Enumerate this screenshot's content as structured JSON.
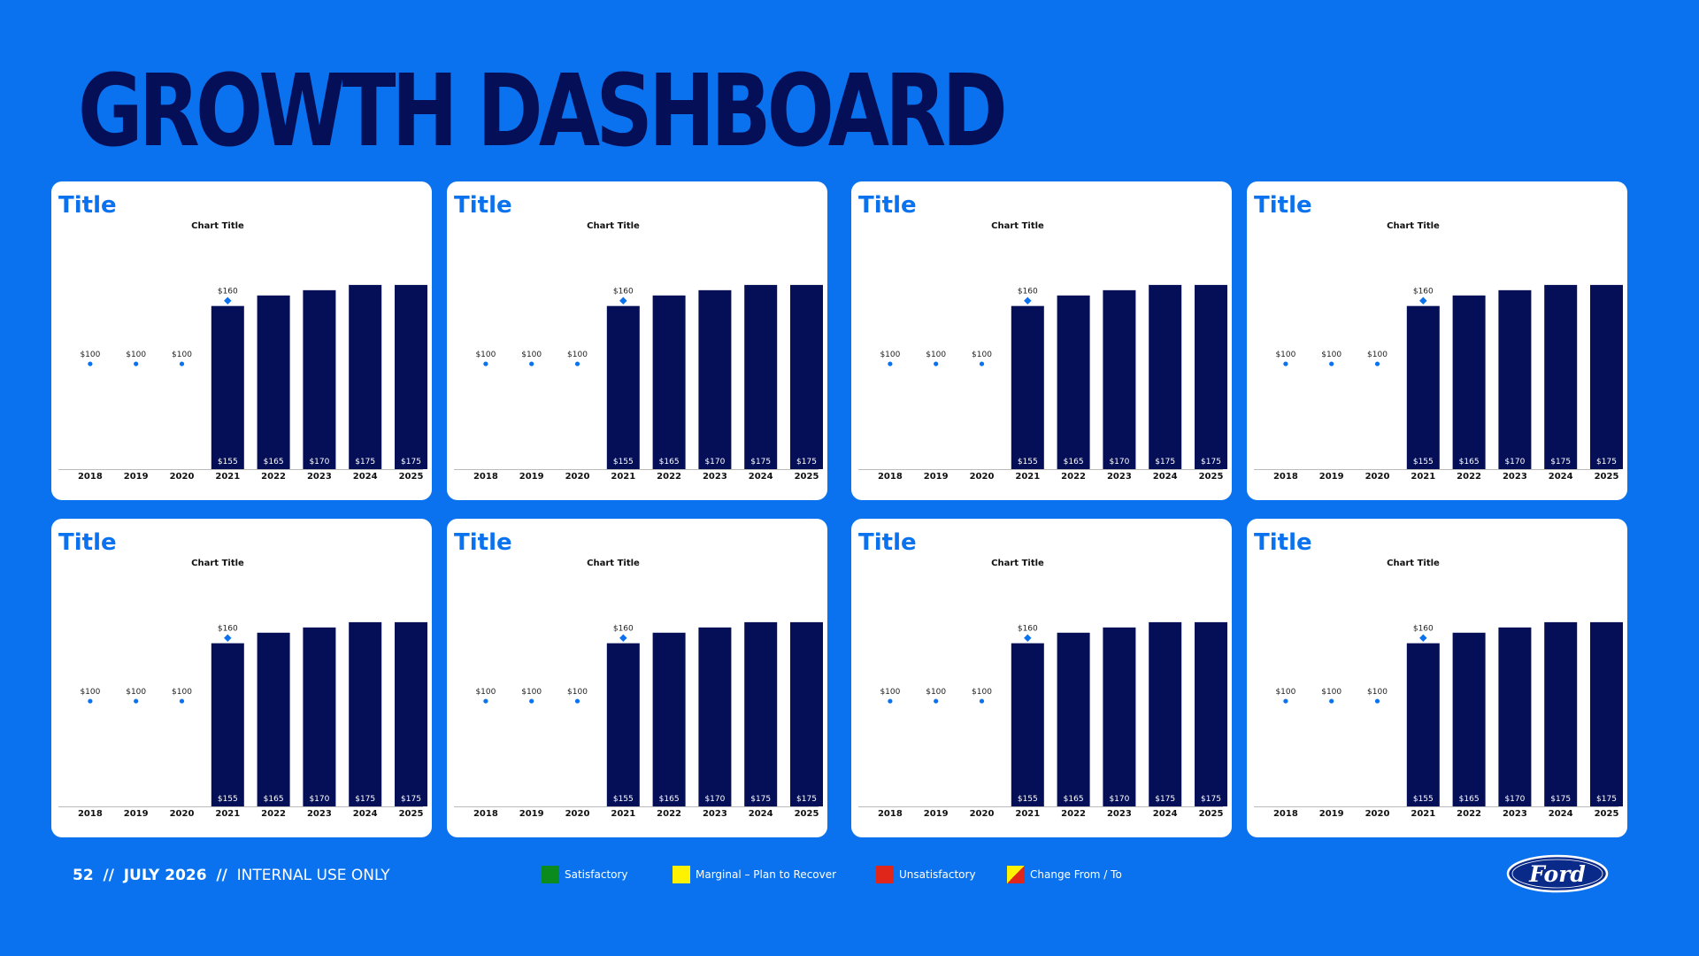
{
  "header": {
    "title": "GROWTH DASHBOARD"
  },
  "colors": {
    "bar": "#050F57",
    "marker": "#0A72EE",
    "background": "#0A72EE",
    "title": "#0A72EE"
  },
  "cards": [
    {
      "title": "Title"
    },
    {
      "title": "Title"
    },
    {
      "title": "Title"
    },
    {
      "title": "Title"
    },
    {
      "title": "Title"
    },
    {
      "title": "Title"
    },
    {
      "title": "Title"
    },
    {
      "title": "Title"
    }
  ],
  "chart_data": [
    {
      "type": "bar",
      "title": "Chart Title",
      "categories": [
        "2018",
        "2019",
        "2020",
        "2021",
        "2022",
        "2023",
        "2024",
        "2025"
      ],
      "series": [
        {
          "values": [
            null,
            null,
            null,
            155,
            165,
            170,
            175,
            175
          ],
          "labels": [
            "",
            "",
            "",
            "$155",
            "$165",
            "$170",
            "$175",
            "$175"
          ]
        }
      ],
      "markers": [
        {
          "values": [
            100,
            100,
            100,
            160,
            null,
            null,
            null,
            null
          ],
          "labels": [
            "$100",
            "$100",
            "$100",
            "$160",
            "",
            "",
            "",
            ""
          ]
        }
      ],
      "ylim": [
        0,
        185
      ]
    },
    {
      "type": "bar",
      "title": "Chart Title",
      "categories": [
        "2018",
        "2019",
        "2020",
        "2021",
        "2022",
        "2023",
        "2024",
        "2025"
      ],
      "series": [
        {
          "values": [
            null,
            null,
            null,
            155,
            165,
            170,
            175,
            175
          ],
          "labels": [
            "",
            "",
            "",
            "$155",
            "$165",
            "$170",
            "$175",
            "$175"
          ]
        }
      ],
      "markers": [
        {
          "values": [
            100,
            100,
            100,
            160,
            null,
            null,
            null,
            null
          ],
          "labels": [
            "$100",
            "$100",
            "$100",
            "$160",
            "",
            "",
            "",
            ""
          ]
        }
      ],
      "ylim": [
        0,
        185
      ]
    },
    {
      "type": "bar",
      "title": "Chart Title",
      "categories": [
        "2018",
        "2019",
        "2020",
        "2021",
        "2022",
        "2023",
        "2024",
        "2025"
      ],
      "series": [
        {
          "values": [
            null,
            null,
            null,
            155,
            165,
            170,
            175,
            175
          ],
          "labels": [
            "",
            "",
            "",
            "$155",
            "$165",
            "$170",
            "$175",
            "$175"
          ]
        }
      ],
      "markers": [
        {
          "values": [
            100,
            100,
            100,
            160,
            null,
            null,
            null,
            null
          ],
          "labels": [
            "$100",
            "$100",
            "$100",
            "$160",
            "",
            "",
            "",
            ""
          ]
        }
      ],
      "ylim": [
        0,
        185
      ]
    },
    {
      "type": "bar",
      "title": "Chart Title",
      "categories": [
        "2018",
        "2019",
        "2020",
        "2021",
        "2022",
        "2023",
        "2024",
        "2025"
      ],
      "series": [
        {
          "values": [
            null,
            null,
            null,
            155,
            165,
            170,
            175,
            175
          ],
          "labels": [
            "",
            "",
            "",
            "$155",
            "$165",
            "$170",
            "$175",
            "$175"
          ]
        }
      ],
      "markers": [
        {
          "values": [
            100,
            100,
            100,
            160,
            null,
            null,
            null,
            null
          ],
          "labels": [
            "$100",
            "$100",
            "$100",
            "$160",
            "",
            "",
            "",
            ""
          ]
        }
      ],
      "ylim": [
        0,
        185
      ]
    },
    {
      "type": "bar",
      "title": "Chart Title",
      "categories": [
        "2018",
        "2019",
        "2020",
        "2021",
        "2022",
        "2023",
        "2024",
        "2025"
      ],
      "series": [
        {
          "values": [
            null,
            null,
            null,
            155,
            165,
            170,
            175,
            175
          ],
          "labels": [
            "",
            "",
            "",
            "$155",
            "$165",
            "$170",
            "$175",
            "$175"
          ]
        }
      ],
      "markers": [
        {
          "values": [
            100,
            100,
            100,
            160,
            null,
            null,
            null,
            null
          ],
          "labels": [
            "$100",
            "$100",
            "$100",
            "$160",
            "",
            "",
            "",
            ""
          ]
        }
      ],
      "ylim": [
        0,
        185
      ]
    },
    {
      "type": "bar",
      "title": "Chart Title",
      "categories": [
        "2018",
        "2019",
        "2020",
        "2021",
        "2022",
        "2023",
        "2024",
        "2025"
      ],
      "series": [
        {
          "values": [
            null,
            null,
            null,
            155,
            165,
            170,
            175,
            175
          ],
          "labels": [
            "",
            "",
            "",
            "$155",
            "$165",
            "$170",
            "$175",
            "$175"
          ]
        }
      ],
      "markers": [
        {
          "values": [
            100,
            100,
            100,
            160,
            null,
            null,
            null,
            null
          ],
          "labels": [
            "$100",
            "$100",
            "$100",
            "$160",
            "",
            "",
            "",
            ""
          ]
        }
      ],
      "ylim": [
        0,
        185
      ]
    },
    {
      "type": "bar",
      "title": "Chart Title",
      "categories": [
        "2018",
        "2019",
        "2020",
        "2021",
        "2022",
        "2023",
        "2024",
        "2025"
      ],
      "series": [
        {
          "values": [
            null,
            null,
            null,
            155,
            165,
            170,
            175,
            175
          ],
          "labels": [
            "",
            "",
            "",
            "$155",
            "$165",
            "$170",
            "$175",
            "$175"
          ]
        }
      ],
      "markers": [
        {
          "values": [
            100,
            100,
            100,
            160,
            null,
            null,
            null,
            null
          ],
          "labels": [
            "$100",
            "$100",
            "$100",
            "$160",
            "",
            "",
            "",
            ""
          ]
        }
      ],
      "ylim": [
        0,
        185
      ]
    },
    {
      "type": "bar",
      "title": "Chart Title",
      "categories": [
        "2018",
        "2019",
        "2020",
        "2021",
        "2022",
        "2023",
        "2024",
        "2025"
      ],
      "series": [
        {
          "values": [
            null,
            null,
            null,
            155,
            165,
            170,
            175,
            175
          ],
          "labels": [
            "",
            "",
            "",
            "$155",
            "$165",
            "$170",
            "$175",
            "$175"
          ]
        }
      ],
      "markers": [
        {
          "values": [
            100,
            100,
            100,
            160,
            null,
            null,
            null,
            null
          ],
          "labels": [
            "$100",
            "$100",
            "$100",
            "$160",
            "",
            "",
            "",
            ""
          ]
        }
      ],
      "ylim": [
        0,
        185
      ]
    }
  ],
  "footer": {
    "page": "52",
    "sep": "//",
    "date": "JULY 2026",
    "classification": "INTERNAL USE ONLY"
  },
  "legend": [
    {
      "label": "Satisfactory",
      "color": "#0B8A1E"
    },
    {
      "label": "Marginal – Plan to Recover",
      "color": "#FFF200"
    },
    {
      "label": "Unsatisfactory",
      "color": "#E0251B"
    },
    {
      "label": "Change From / To",
      "color": "#FFF200",
      "color2": "#E0251B"
    }
  ],
  "logo": {
    "text": "Ford"
  }
}
